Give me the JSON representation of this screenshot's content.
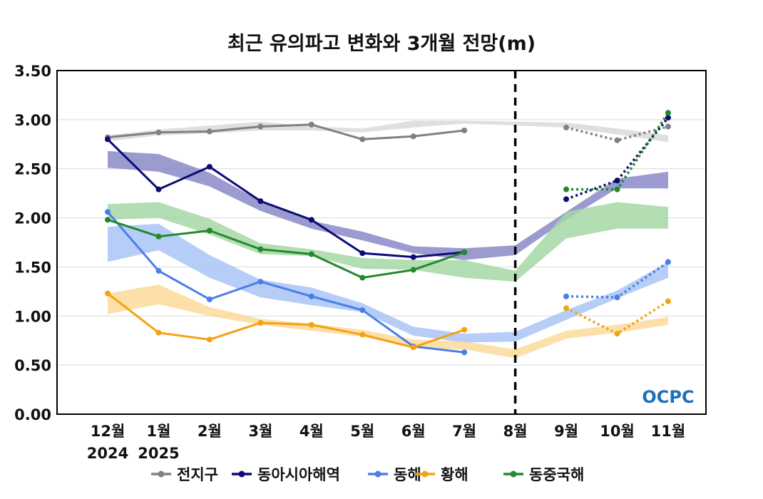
{
  "chart_data": {
    "type": "line",
    "title": "최근 유의파고 변화와 3개월 전망(m)",
    "ylim": [
      0,
      3.5
    ],
    "yticks": [
      "0.00",
      "0.50",
      "1.00",
      "1.50",
      "2.00",
      "2.50",
      "3.00",
      "3.50"
    ],
    "categories": [
      "12월",
      "1월",
      "2월",
      "3월",
      "4월",
      "5월",
      "6월",
      "7월",
      "8월",
      "9월",
      "10월",
      "11월"
    ],
    "year_labels": [
      "2024",
      "2025"
    ],
    "divider_after": "8월",
    "grid": true,
    "legend_position": "bottom",
    "logo": "OCPC",
    "series": [
      {
        "name": "전지구",
        "color": "#808080",
        "band_color": "#d9d9d9",
        "observed": [
          2.82,
          2.87,
          2.88,
          2.93,
          2.95,
          2.8,
          2.83,
          2.89
        ],
        "forecast": [
          2.92,
          2.79,
          2.93
        ],
        "band_upper": [
          2.84,
          2.9,
          2.94,
          2.98,
          2.93,
          2.91,
          2.99,
          2.99,
          2.98,
          2.97,
          2.91,
          2.84
        ],
        "band_lower": [
          2.78,
          2.84,
          2.86,
          2.89,
          2.89,
          2.87,
          2.92,
          2.96,
          2.94,
          2.92,
          2.85,
          2.77
        ]
      },
      {
        "name": "동아시아해역",
        "color": "#0b0b78",
        "band_color": "#8a8ac8",
        "observed": [
          2.8,
          2.29,
          2.52,
          2.17,
          1.98,
          1.64,
          1.6,
          1.65
        ],
        "forecast": [
          2.19,
          2.38,
          3.02
        ],
        "band_upper": [
          2.68,
          2.65,
          2.46,
          2.17,
          1.97,
          1.86,
          1.71,
          1.69,
          1.72,
          2.06,
          2.4,
          2.47
        ],
        "band_lower": [
          2.51,
          2.47,
          2.32,
          2.07,
          1.89,
          1.77,
          1.64,
          1.57,
          1.62,
          1.98,
          2.3,
          2.3
        ]
      },
      {
        "name": "동해",
        "color": "#4a7ee8",
        "band_color": "#a9c4f7",
        "observed": [
          2.06,
          1.46,
          1.17,
          1.35,
          1.2,
          1.06,
          0.69,
          0.63
        ],
        "forecast": [
          1.2,
          1.19,
          1.55
        ],
        "band_upper": [
          1.91,
          1.94,
          1.62,
          1.37,
          1.29,
          1.13,
          0.89,
          0.82,
          0.84,
          1.06,
          1.26,
          1.55
        ],
        "band_lower": [
          1.55,
          1.67,
          1.39,
          1.19,
          1.11,
          1.04,
          0.8,
          0.73,
          0.74,
          0.96,
          1.18,
          1.39
        ]
      },
      {
        "name": "황해",
        "color": "#f5a114",
        "band_color": "#fbd99a",
        "observed": [
          1.23,
          0.83,
          0.76,
          0.93,
          0.91,
          0.81,
          0.68,
          0.86
        ],
        "forecast": [
          1.08,
          0.82,
          1.15
        ],
        "band_upper": [
          1.23,
          1.32,
          1.09,
          0.97,
          0.92,
          0.86,
          0.76,
          0.74,
          0.66,
          0.85,
          0.91,
          0.99
        ],
        "band_lower": [
          1.02,
          1.12,
          1.0,
          0.91,
          0.85,
          0.79,
          0.67,
          0.66,
          0.57,
          0.77,
          0.83,
          0.91
        ]
      },
      {
        "name": "동중국해",
        "color": "#23892e",
        "band_color": "#a6d7a4",
        "observed": [
          1.98,
          1.81,
          1.87,
          1.68,
          1.63,
          1.39,
          1.47,
          1.65
        ],
        "forecast": [
          2.29,
          2.29,
          3.07
        ],
        "band_upper": [
          2.14,
          2.16,
          1.99,
          1.74,
          1.68,
          1.59,
          1.57,
          1.57,
          1.46,
          2.06,
          2.16,
          2.11
        ],
        "band_lower": [
          1.98,
          2.0,
          1.83,
          1.63,
          1.61,
          1.48,
          1.47,
          1.39,
          1.35,
          1.79,
          1.89,
          1.89
        ]
      }
    ]
  }
}
